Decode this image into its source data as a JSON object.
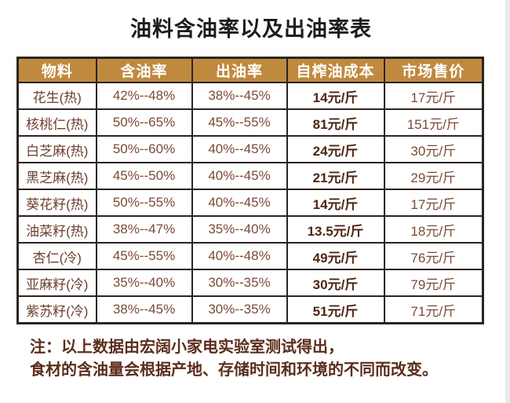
{
  "page": {
    "title": "油料含油率以及出油率表",
    "note_line1": "注：以上数据由宏阔小家电实验室测试得出，",
    "note_line2": "食材的含油量会根据产地、存储时间和环境的不同而改变。"
  },
  "colors": {
    "header_bg": "#bf8a3e",
    "header_text": "#ffffff",
    "border": "#2b2520",
    "cell_text": "#7a4a36",
    "material_text": "#6b3f2e",
    "cost_text": "#4c2716",
    "note_text": "#5b2d1c",
    "title_text": "#1c1c1c",
    "edge_strip": "#e9e9e9"
  },
  "table": {
    "headers": [
      "物料",
      "含油率",
      "出油率",
      "自榨油成本",
      "市场售价"
    ],
    "rows": [
      [
        "花生(热)",
        "42%--48%",
        "38%--45%",
        "14元/斤",
        "17元/斤"
      ],
      [
        "核桃仁(热)",
        "50%--65%",
        "45%--55%",
        "81元/斤",
        "151元/斤"
      ],
      [
        "白芝麻(热)",
        "50%--60%",
        "40%--45%",
        "24元/斤",
        "30元/斤"
      ],
      [
        "黑芝麻(热)",
        "45%--50%",
        "40%--45%",
        "21元/斤",
        "29元/斤"
      ],
      [
        "葵花籽(热)",
        "50%--55%",
        "40%--45%",
        "14元/斤",
        "17元/斤"
      ],
      [
        "油菜籽(热)",
        "38%--47%",
        "35%--40%",
        "13.5元/斤",
        "18元/斤"
      ],
      [
        "杏仁(冷)",
        "45%--55%",
        "40%--48%",
        "49元/斤",
        "76元/斤"
      ],
      [
        "亚麻籽(冷)",
        "35%--40%",
        "30%--35%",
        "30元/斤",
        "79元/斤"
      ],
      [
        "紫苏籽(冷)",
        "38%--45%",
        "30%--35%",
        "51元/斤",
        "71元/斤"
      ]
    ]
  },
  "chart_data": {
    "type": "table",
    "title": "油料含油率以及出油率表",
    "columns": [
      "物料",
      "含油率",
      "出油率",
      "自榨油成本",
      "市场售价"
    ],
    "rows": [
      [
        "花生(热)",
        "42%--48%",
        "38%--45%",
        "14元/斤",
        "17元/斤"
      ],
      [
        "核桃仁(热)",
        "50%--65%",
        "45%--55%",
        "81元/斤",
        "151元/斤"
      ],
      [
        "白芝麻(热)",
        "50%--60%",
        "40%--45%",
        "24元/斤",
        "30元/斤"
      ],
      [
        "黑芝麻(热)",
        "45%--50%",
        "40%--45%",
        "21元/斤",
        "29元/斤"
      ],
      [
        "葵花籽(热)",
        "50%--55%",
        "40%--45%",
        "14元/斤",
        "17元/斤"
      ],
      [
        "油菜籽(热)",
        "38%--47%",
        "35%--40%",
        "13.5元/斤",
        "18元/斤"
      ],
      [
        "杏仁(冷)",
        "45%--55%",
        "40%--48%",
        "49元/斤",
        "76元/斤"
      ],
      [
        "亚麻籽(冷)",
        "35%--40%",
        "30%--35%",
        "30元/斤",
        "79元/斤"
      ],
      [
        "紫苏籽(冷)",
        "38%--45%",
        "30%--35%",
        "51元/斤",
        "71元/斤"
      ]
    ],
    "note": "注：以上数据由宏阔小家电实验室测试得出，食材的含油量会根据产地、存储时间和环境的不同而改变。"
  }
}
